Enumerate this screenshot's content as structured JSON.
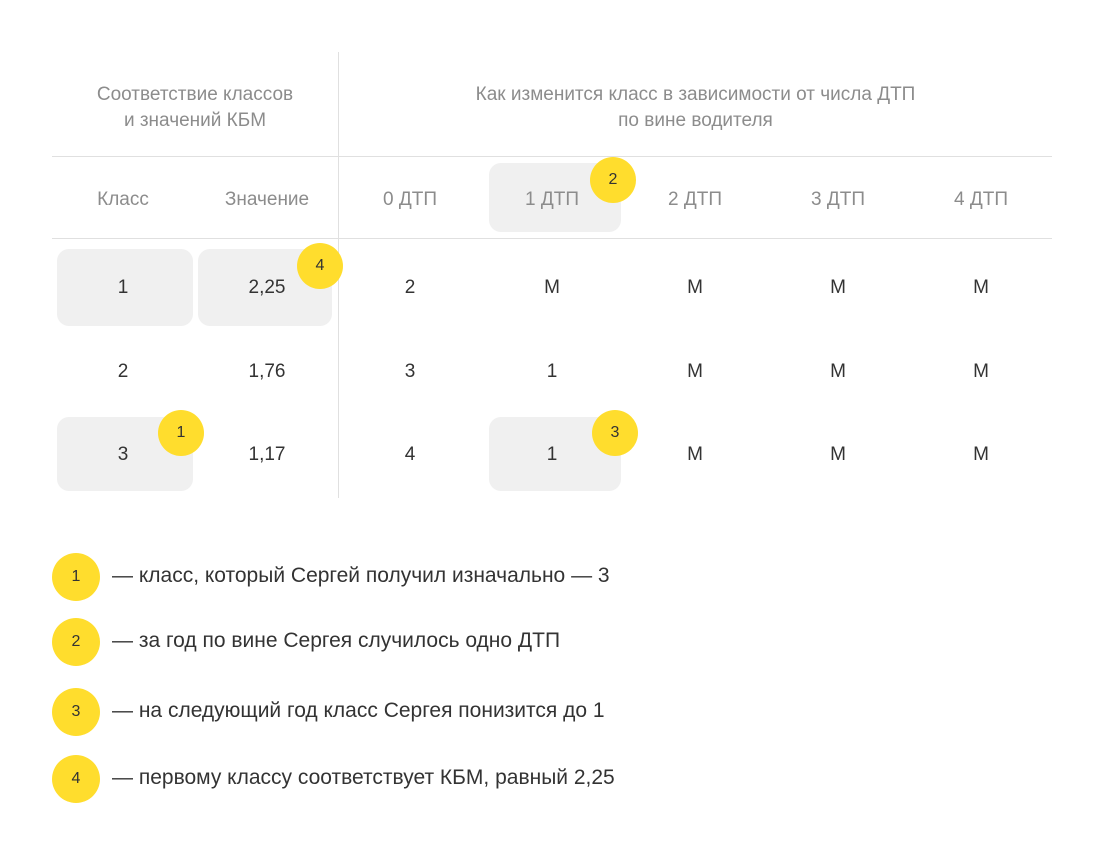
{
  "header": {
    "left_line1": "Соответствие классов",
    "left_line2": "и значений КБМ",
    "right_line1": "Как изменится класс в зависимости от числа ДТП",
    "right_line2": "по вине водителя"
  },
  "columns": [
    "Класс",
    "Значение",
    "0 ДТП",
    "1 ДТП",
    "2 ДТП",
    "3 ДТП",
    "4 ДТП"
  ],
  "rows": [
    [
      "1",
      "2,25",
      "2",
      "M",
      "M",
      "M",
      "M"
    ],
    [
      "2",
      "1,76",
      "3",
      "1",
      "M",
      "M",
      "M"
    ],
    [
      "3",
      "1,17",
      "4",
      "1",
      "M",
      "M",
      "M"
    ]
  ],
  "badges": {
    "b1": "1",
    "b2": "2",
    "b3": "3",
    "b4": "4"
  },
  "legend": [
    {
      "num": "1",
      "text": "— класс, который Сергей получил изначально — 3"
    },
    {
      "num": "2",
      "text": "— за год по вине Сергея случилось одно ДТП"
    },
    {
      "num": "3",
      "text": "— на следующий год класс Сергея понизится до 1"
    },
    {
      "num": "4",
      "text": "— первому классу соответствует КБМ, равный 2,25"
    }
  ],
  "colors": {
    "badge": "#ffdd2d",
    "highlight": "#f0f0f0",
    "muted_text": "#8c8c8c",
    "text": "#333333"
  }
}
